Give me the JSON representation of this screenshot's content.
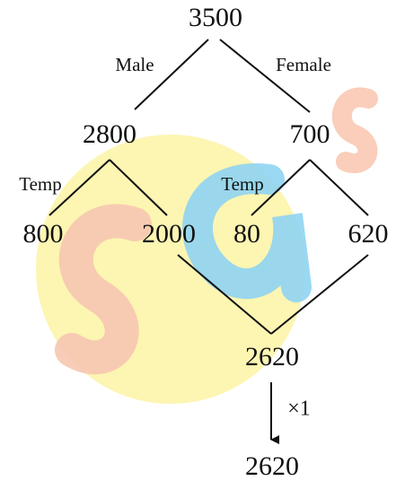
{
  "nodes": [
    {
      "label": "3500"
    },
    {
      "label": "2800"
    },
    {
      "label": "700"
    },
    {
      "label": "800"
    },
    {
      "label": "2000"
    },
    {
      "label": "80"
    },
    {
      "label": "620"
    },
    {
      "label": "2620"
    },
    {
      "label": "2620"
    }
  ],
  "edge_labels": [
    "Male",
    "Female",
    "Temp",
    "Temp"
  ],
  "operation": "×1"
}
